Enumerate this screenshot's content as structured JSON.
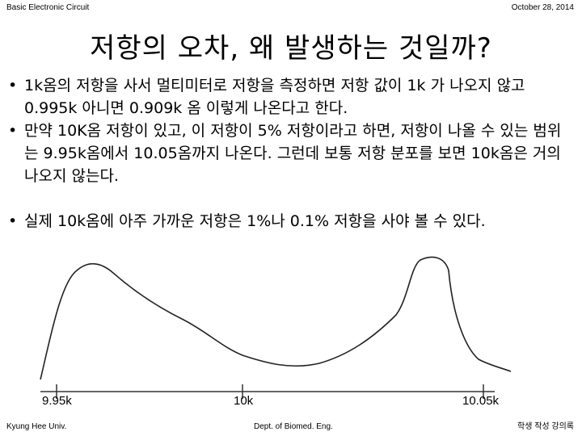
{
  "header": {
    "left": "Basic Electronic Circuit",
    "right": "October 28, 2014"
  },
  "title": "저항의 오차, 왜 발생하는 것일까?",
  "bullets": [
    "1k옴의 저항을 사서 멀티미터로 저항을 측정하면 저항 값이 1k 가 나오지 않고 0.995k 아니면 0.909k 옴 이렇게 나온다고 한다.",
    "만약 10K옴 저항이 있고, 이 저항이 5% 저항이라고 하면, 저항이 나올 수 있는 범위는 9.95k옴에서 10.05옴까지 나온다. 그런데 보통 저항 분포를 보면 10k옴은 거의 나오지 않는다.",
    "실제 10k옴에 아주 가까운 저항은 1%나 0.1% 저항을 사야 볼 수 있다."
  ],
  "chart_data": {
    "type": "line",
    "x_tick_labels": [
      "9.95k",
      "10k",
      "10.05k"
    ],
    "x_tick_values": [
      9.95,
      10.0,
      10.05
    ],
    "description_series": {
      "x": [
        9.95,
        9.96,
        9.975,
        9.99,
        10.0,
        10.01,
        10.02,
        10.03,
        10.035,
        10.04,
        10.05,
        10.055
      ],
      "y": [
        0.05,
        0.9,
        0.6,
        0.35,
        0.12,
        0.14,
        0.28,
        0.4,
        0.97,
        0.9,
        0.1,
        0.02
      ]
    }
  },
  "footer": {
    "left": "Kyung Hee Univ.",
    "center": "Dept. of Biomed. Eng.",
    "right": "학생 작성 강의록"
  }
}
